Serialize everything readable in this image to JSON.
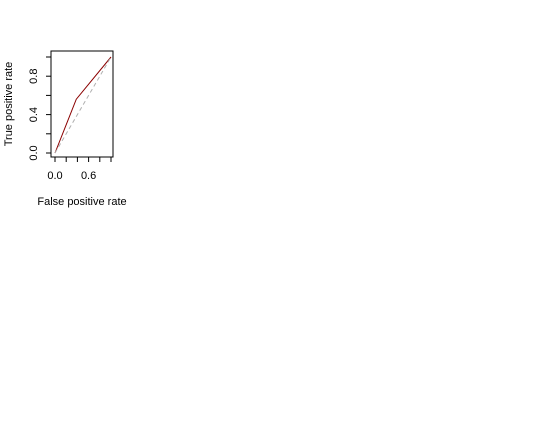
{
  "chart_data": {
    "type": "line",
    "xlabel": "False positive rate",
    "ylabel": "True positive rate",
    "xlim": [
      0,
      1
    ],
    "ylim": [
      0,
      1
    ],
    "x_ticks": [
      0,
      0.2,
      0.4,
      0.6,
      0.8,
      1.0
    ],
    "x_tick_labels": [
      "0.0",
      "",
      "",
      "0.6",
      "",
      ""
    ],
    "y_ticks": [
      0,
      0.2,
      0.4,
      0.6,
      0.8,
      1.0
    ],
    "y_tick_labels": [
      "0.0",
      "",
      "0.4",
      "",
      "0.8",
      ""
    ],
    "grid": false,
    "series": [
      {
        "x": [
          0,
          0.38,
          1.0
        ],
        "y": [
          0,
          0.56,
          1.0
        ],
        "color": "#8b0000",
        "style": "solid"
      },
      {
        "x": [
          0,
          1
        ],
        "y": [
          0,
          1
        ],
        "color": "#b0b0b0",
        "style": "dashed"
      }
    ]
  }
}
